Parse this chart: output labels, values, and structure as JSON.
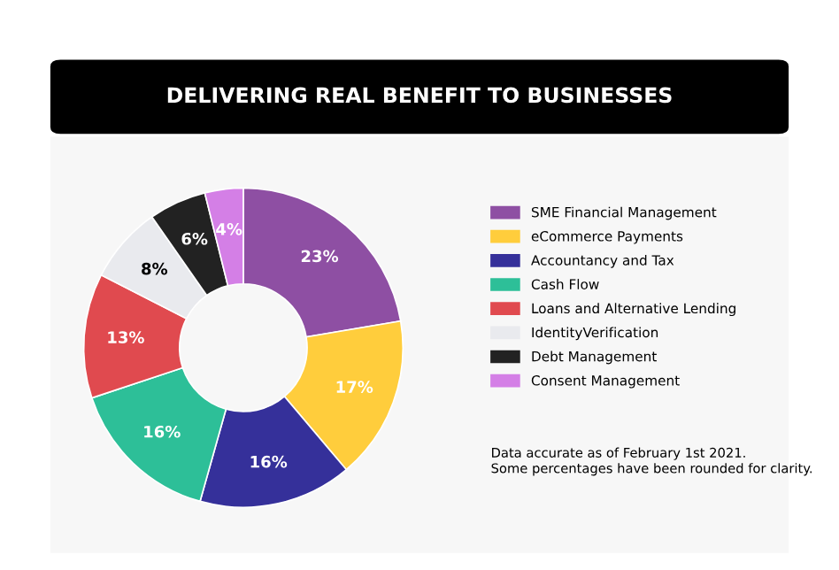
{
  "chart_data": {
    "type": "donut",
    "title": "DELIVERING REAL BENEFIT TO BUSINESSES",
    "categories": [
      "SME Financial Management",
      "eCommerce Payments",
      "Accountancy and Tax",
      "Cash Flow",
      "Loans and Alternative Lending",
      "IdentityVerification",
      "Debt Management",
      "Consent Management"
    ],
    "values": [
      23,
      17,
      16,
      16,
      13,
      8,
      6,
      4
    ],
    "value_labels": [
      "23%",
      "17%",
      "16%",
      "16%",
      "13%",
      "8%",
      "6%",
      "4%"
    ],
    "colors": [
      "#8e4fa3",
      "#ffcd3c",
      "#35309a",
      "#2dbf98",
      "#e04a4f",
      "#e9eaee",
      "#222222",
      "#d47fe6"
    ],
    "legend": "right",
    "annotations": [
      "Data accurate as of February 1st 2021.\nSome percentages have been rounded for clarity."
    ]
  }
}
